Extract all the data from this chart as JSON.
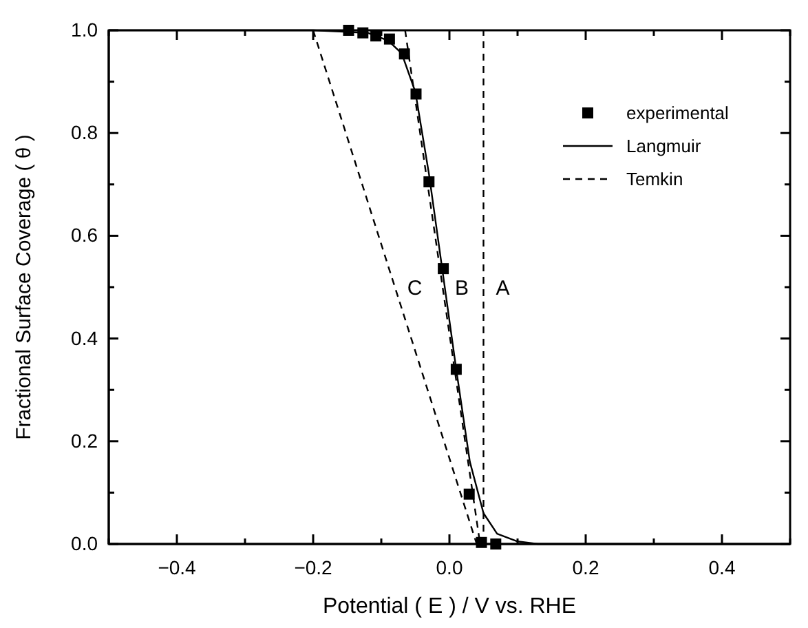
{
  "chart_data": {
    "type": "line",
    "xlabel": "Potential ( E ) / V vs. RHE",
    "ylabel": "Fractional Surface Coverage ( θ )",
    "xlim": [
      -0.5,
      0.5
    ],
    "ylim": [
      0,
      1
    ],
    "xticks": [
      {
        "value": -0.5,
        "label": null
      },
      -0.4,
      {
        "value": -0.3,
        "label": null
      },
      -0.2,
      {
        "value": -0.1,
        "label": null
      },
      {
        "value": 0,
        "label": "0.0"
      },
      {
        "value": 0.1,
        "label": null
      },
      0.2,
      {
        "value": 0.3,
        "label": null
      },
      0.4,
      {
        "value": 0.5,
        "label": null
      }
    ],
    "yticks": [
      {
        "value": 0,
        "label": "0.0"
      },
      {
        "value": 0.1,
        "label": null
      },
      0.2,
      {
        "value": 0.3,
        "label": null
      },
      0.4,
      {
        "value": 0.5,
        "label": null
      },
      0.6,
      {
        "value": 0.7,
        "label": null
      },
      0.8,
      {
        "value": 0.9,
        "label": null
      },
      {
        "value": 1,
        "label": "1.0"
      }
    ],
    "grid": false,
    "legend": "top right",
    "series": [
      {
        "name": "experimental",
        "type": "scatter",
        "marker": "square",
        "color": "#000000",
        "x": [
          -0.148,
          -0.127,
          -0.108,
          -0.088,
          -0.066,
          -0.049,
          -0.03,
          -0.009,
          0.01,
          0.029,
          0.047,
          0.068
        ],
        "values": [
          1.0,
          0.995,
          0.989,
          0.983,
          0.954,
          0.876,
          0.705,
          0.536,
          0.34,
          0.097,
          0.003,
          0.0
        ]
      },
      {
        "name": "Langmuir",
        "line_style": "solid",
        "color": "#000000",
        "x": [
          -0.5,
          -0.2,
          -0.12,
          -0.09,
          -0.07,
          -0.05,
          -0.03,
          -0.01,
          0.01,
          0.03,
          0.05,
          0.07,
          0.1,
          0.13,
          0.5
        ],
        "values": [
          1.0,
          1.0,
          0.995,
          0.98,
          0.955,
          0.88,
          0.72,
          0.53,
          0.34,
          0.16,
          0.06,
          0.02,
          0.005,
          0.0,
          0.0
        ]
      },
      {
        "name": "Temkin",
        "line_style": "dashed",
        "color": "#000000",
        "x": [
          0.05,
          0.05
        ],
        "values": [
          0,
          1
        ]
      },
      {
        "line_style": "dashed",
        "color": "#000000",
        "x": [
          -0.065,
          0.045
        ],
        "values": [
          1,
          0
        ]
      },
      {
        "line_style": "dashed",
        "color": "#000000",
        "x": [
          -0.2,
          0.04
        ],
        "values": [
          1,
          0
        ]
      }
    ],
    "annotations": [
      {
        "text": "C",
        "x": -0.08,
        "y": 0.5
      },
      {
        "text": "B",
        "x": -0.01,
        "y": 0.5
      },
      {
        "text": "A",
        "x": 0.05,
        "y": 0.5
      }
    ]
  }
}
